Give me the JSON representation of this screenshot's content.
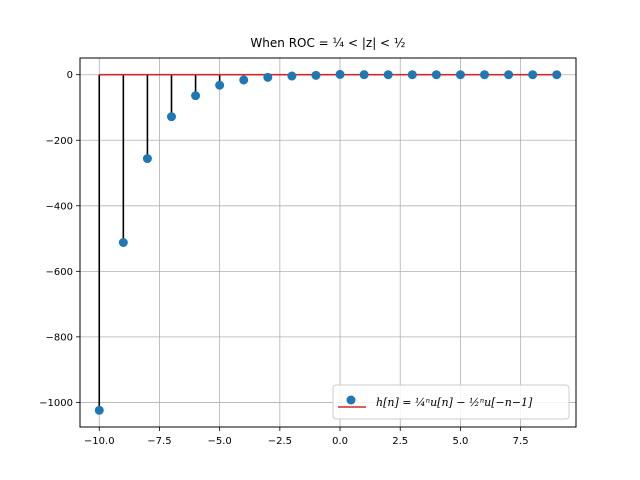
{
  "chart_data": {
    "type": "stem",
    "title": "When ROC = ¼ < |z| < ½",
    "xlabel": "",
    "ylabel": "",
    "xlim": [
      -10.8,
      9.8
    ],
    "ylim": [
      -1075,
      51
    ],
    "xticks": [
      -10.0,
      -7.5,
      -5.0,
      -2.5,
      0.0,
      2.5,
      5.0,
      7.5
    ],
    "xtick_labels": [
      "−10.0",
      "−7.5",
      "−5.0",
      "−2.5",
      "0.0",
      "2.5",
      "5.0",
      "7.5"
    ],
    "yticks": [
      0,
      -200,
      -400,
      -600,
      -800,
      -1000
    ],
    "ytick_labels": [
      "0",
      "−200",
      "−400",
      "−600",
      "−800",
      "−1000"
    ],
    "grid": true,
    "legend_position": "lower right",
    "legend_label": "h[n] = ¼ⁿu[n] − ½ⁿu[−n−1]",
    "colors": {
      "marker": "#1f77b4",
      "stem": "#000000",
      "baseline": "#d62728",
      "grid": "#b0b0b0"
    },
    "series": [
      {
        "name": "h[n] = ¼ⁿu[n] − ½ⁿu[−n−1]",
        "x": [
          -10,
          -9,
          -8,
          -7,
          -6,
          -5,
          -4,
          -3,
          -2,
          -1,
          0,
          1,
          2,
          3,
          4,
          5,
          6,
          7,
          8,
          9
        ],
        "y": [
          -1024,
          -512,
          -256,
          -128,
          -64,
          -32,
          -16,
          -8,
          -4,
          -2,
          1,
          0.25,
          0.0625,
          0.015625,
          0.0039,
          0.001,
          0.0002,
          6e-05,
          2e-05,
          4e-06
        ]
      }
    ]
  }
}
